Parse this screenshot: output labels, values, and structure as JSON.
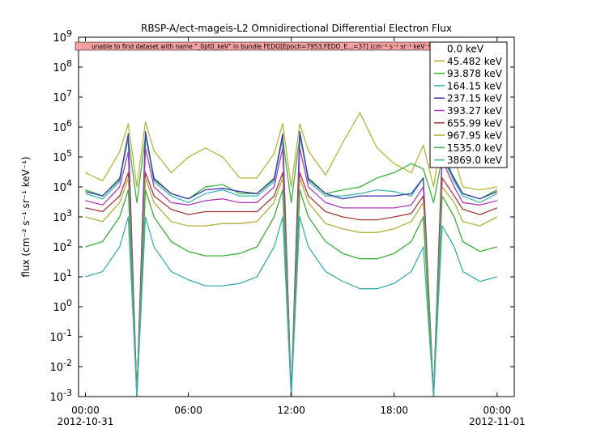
{
  "chart_data": {
    "type": "line",
    "title": "RBSP-A/ect-mageis-L2  Omnidirectional Differential Electron Flux",
    "ylabel": "flux (cm⁻² s⁻¹ sr⁻¹ keV⁻¹)",
    "annotation": "unable to find dataset with name \"_0pt0_keV\" in bundle FEDO[Epoch=7953,FEDO_E...=37] (cm⁻² s⁻¹ sr⁻¹ keV⁻¹)",
    "log_y": true,
    "legend": "top-right",
    "xlim": [
      -0.4,
      25.0
    ],
    "ylim": [
      0.001,
      1000000000
    ],
    "xticks": [
      {
        "value": 0,
        "label": "00:00",
        "date": "2012-10-31"
      },
      {
        "value": 6,
        "label": "06:00"
      },
      {
        "value": 12,
        "label": "12:00"
      },
      {
        "value": 18,
        "label": "18:00"
      },
      {
        "value": 24,
        "label": "00:00",
        "date": "2012-11-01"
      }
    ],
    "yticks": [
      {
        "value": 0.001,
        "label": "10",
        "exp": "-3"
      },
      {
        "value": 0.01,
        "label": "10",
        "exp": "-2"
      },
      {
        "value": 0.1,
        "label": "10",
        "exp": "-1"
      },
      {
        "value": 1,
        "label": "10",
        "exp": "0"
      },
      {
        "value": 10,
        "label": "10",
        "exp": "1"
      },
      {
        "value": 100,
        "label": "10",
        "exp": "2"
      },
      {
        "value": 1000,
        "label": "10",
        "exp": "3"
      },
      {
        "value": 10000,
        "label": "10",
        "exp": "4"
      },
      {
        "value": 100000,
        "label": "10",
        "exp": "5"
      },
      {
        "value": 1000000,
        "label": "10",
        "exp": "6"
      },
      {
        "value": 10000000,
        "label": "10",
        "exp": "7"
      },
      {
        "value": 100000000,
        "label": "10",
        "exp": "8"
      },
      {
        "value": 1000000000,
        "label": "10",
        "exp": "9"
      }
    ],
    "x": [
      0,
      1,
      2,
      2.5,
      3,
      3.5,
      4,
      5,
      6,
      7,
      8,
      9,
      10,
      11,
      11.5,
      12,
      12.5,
      13,
      14,
      15,
      16,
      17,
      18,
      19,
      19.7,
      20.3,
      20.8,
      21.5,
      22,
      23,
      24
    ],
    "series": [
      {
        "name": "0.0 keV",
        "color": null,
        "values": [
          null,
          null,
          null,
          null,
          null,
          null,
          null,
          null,
          null,
          null,
          null,
          null,
          null,
          null,
          null,
          null,
          null,
          null,
          null,
          null,
          null,
          null,
          null,
          null,
          null,
          null,
          null,
          null,
          null,
          null,
          null
        ]
      },
      {
        "name": "45.482 keV",
        "color": "#b5b53a",
        "values": [
          30000,
          16000,
          150000,
          1300000,
          10000,
          1500000,
          160000,
          30000,
          100000,
          200000,
          100000,
          20000,
          20000,
          130000,
          1300000,
          10000,
          1300000,
          160000,
          25000,
          300000,
          3000000,
          200000,
          60000,
          30000,
          250000,
          10000,
          800000,
          100000,
          10000,
          8000,
          10000
        ]
      },
      {
        "name": "93.878 keV",
        "color": "#3cb33c",
        "values": [
          8000,
          5000,
          20000,
          400000,
          3000,
          500000,
          20000,
          6000,
          4000,
          10000,
          12000,
          6000,
          6000,
          20000,
          400000,
          3000,
          500000,
          20000,
          6000,
          8000,
          10000,
          20000,
          30000,
          60000,
          40000,
          3000,
          100000,
          20000,
          6000,
          4000,
          8000
        ]
      },
      {
        "name": "164.15 keV",
        "color": "#3ab8b0",
        "values": [
          6000,
          4000,
          15000,
          500000,
          0.001,
          600000,
          15000,
          5000,
          3000,
          6000,
          8000,
          5000,
          5000,
          15000,
          500000,
          0.001,
          600000,
          15000,
          5000,
          5000,
          6000,
          8000,
          7000,
          5000,
          20000,
          0.001,
          100000,
          15000,
          5000,
          3000,
          6000
        ]
      },
      {
        "name": "237.15 keV",
        "color": "#3a3aa8",
        "values": [
          7000,
          5000,
          18000,
          600000,
          0.001,
          700000,
          18000,
          6000,
          4000,
          8000,
          9000,
          7000,
          6000,
          18000,
          600000,
          0.001,
          700000,
          18000,
          6000,
          4000,
          5000,
          5000,
          5000,
          6000,
          20000,
          0.001,
          150000,
          18000,
          6000,
          4000,
          7000
        ]
      },
      {
        "name": "393.27 keV",
        "color": "#b03cb8",
        "values": [
          3500,
          2500,
          10000,
          150000,
          0.001,
          200000,
          10000,
          3000,
          2500,
          3500,
          4000,
          3000,
          3000,
          10000,
          200000,
          0.001,
          200000,
          10000,
          3000,
          2000,
          2000,
          2000,
          2000,
          2500,
          10000,
          0.001,
          80000,
          10000,
          3000,
          2500,
          3500
        ]
      },
      {
        "name": "655.99 keV",
        "color": "#a83a3a",
        "values": [
          2000,
          1500,
          5000,
          30000,
          0.001,
          30000,
          5000,
          1800,
          1200,
          1500,
          1500,
          1500,
          1500,
          5000,
          30000,
          0.001,
          30000,
          5000,
          1500,
          1000,
          800,
          800,
          1000,
          1300,
          5000,
          0.001,
          20000,
          5000,
          1800,
          1200,
          2000
        ]
      },
      {
        "name": "967.95 keV",
        "color": "#b0b03a",
        "values": [
          1000,
          700,
          3000,
          20000,
          0.001,
          20000,
          3000,
          700,
          500,
          500,
          600,
          600,
          700,
          3000,
          20000,
          0.001,
          20000,
          3000,
          600,
          400,
          300,
          300,
          400,
          700,
          3000,
          0.001,
          10000,
          3000,
          700,
          500,
          1000
        ]
      },
      {
        "name": "1535.0 keV",
        "color": "#3ab03a",
        "values": [
          100,
          150,
          1000,
          8000,
          0.001,
          8000,
          1000,
          150,
          70,
          50,
          50,
          60,
          100,
          1000,
          8000,
          0.001,
          8000,
          1000,
          150,
          60,
          40,
          40,
          60,
          150,
          1000,
          0.001,
          5000,
          1000,
          150,
          70,
          100
        ]
      },
      {
        "name": "3869.0 keV",
        "color": "#3ab0b0",
        "values": [
          10,
          15,
          100,
          1000,
          0.001,
          1000,
          100,
          15,
          8,
          5,
          5,
          6,
          10,
          100,
          1000,
          0.001,
          1000,
          100,
          15,
          7,
          4,
          4,
          6,
          15,
          100,
          0.001,
          500,
          100,
          15,
          7,
          10
        ]
      }
    ]
  }
}
